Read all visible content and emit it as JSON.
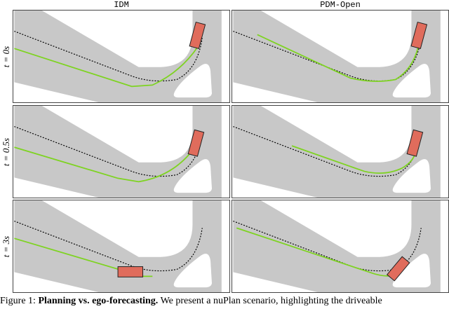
{
  "header": {
    "columns": [
      "IDM",
      "PDM-Open"
    ]
  },
  "rows": [
    "t = 0s",
    "t = 0.5s",
    "t = 3s"
  ],
  "caption": {
    "label": "Figure 1:",
    "bold": "Planning vs. ego-forecasting.",
    "text": "We present a nuPlan scenario, highlighting the driveable"
  }
}
